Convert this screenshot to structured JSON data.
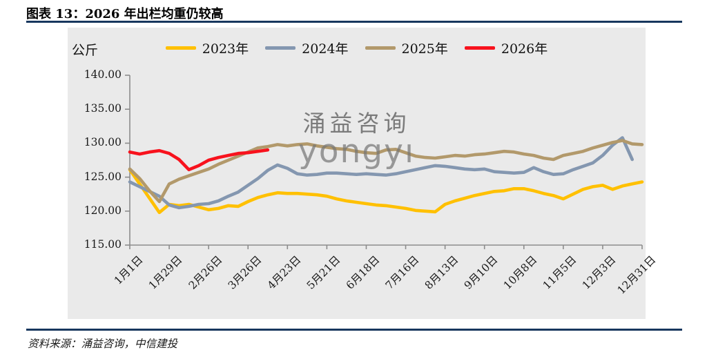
{
  "title": "图表 13：2026 年出栏均重仍较高",
  "source_note": "资料来源：涌益咨询，中信建投",
  "watermark": {
    "line1": "涌益咨询",
    "line2": "yongyı"
  },
  "rule_color": "#17375E",
  "chart_data": {
    "type": "line",
    "unit_label": "公斤",
    "plot_bg": "#EAEAEA",
    "axis_color": "#8C8C8C",
    "grid": "off",
    "legend_position": "top",
    "ylim": [
      115,
      140
    ],
    "y_tick_labels": [
      "140.00",
      "135.00",
      "130.00",
      "125.00",
      "120.00",
      "115.00"
    ],
    "y_tick_values": [
      140,
      135,
      130,
      125,
      120,
      115
    ],
    "x_tick_labels": [
      "1月1日",
      "1月29日",
      "2月26日",
      "3月26日",
      "4月23日",
      "5月21日",
      "6月18日",
      "7月16日",
      "8月13日",
      "9月10日",
      "10月8日",
      "11月5日",
      "12月3日",
      "12月31日"
    ],
    "points_per_tick": 4,
    "x_unit": "week",
    "series": [
      {
        "name": "2023年",
        "color": "#FFC000",
        "values": [
          126.1,
          124.0,
          121.9,
          119.8,
          121.0,
          120.8,
          121.0,
          120.6,
          120.2,
          120.4,
          120.8,
          120.7,
          121.4,
          122.0,
          122.4,
          122.7,
          122.6,
          122.6,
          122.5,
          122.4,
          122.2,
          121.8,
          121.5,
          121.3,
          121.1,
          120.9,
          120.8,
          120.6,
          120.4,
          120.1,
          120.0,
          119.9,
          121.0,
          121.5,
          121.9,
          122.3,
          122.6,
          122.9,
          123.0,
          123.3,
          123.3,
          123.0,
          122.6,
          122.3,
          121.8,
          122.5,
          123.2,
          123.6,
          123.8,
          123.2,
          123.7,
          124.0,
          124.3
        ]
      },
      {
        "name": "2024年",
        "color": "#8497B0",
        "values": [
          124.3,
          123.6,
          122.9,
          122.2,
          120.9,
          120.5,
          120.7,
          121.0,
          121.1,
          121.5,
          122.2,
          122.8,
          123.8,
          124.8,
          126.0,
          126.8,
          126.3,
          125.5,
          125.3,
          125.4,
          125.6,
          125.6,
          125.5,
          125.4,
          125.5,
          125.4,
          125.3,
          125.5,
          125.8,
          126.1,
          126.4,
          126.7,
          126.6,
          126.4,
          126.2,
          126.1,
          126.2,
          125.8,
          125.7,
          125.6,
          125.7,
          126.4,
          125.8,
          125.4,
          125.5,
          126.1,
          126.6,
          127.1,
          128.2,
          129.7,
          130.8,
          127.6
        ]
      },
      {
        "name": "2025年",
        "color": "#B2996B",
        "values": [
          126.2,
          124.8,
          123.0,
          121.4,
          124.0,
          124.7,
          125.2,
          125.7,
          126.2,
          126.9,
          127.5,
          128.1,
          128.7,
          129.3,
          129.5,
          129.8,
          129.6,
          129.8,
          129.9,
          129.6,
          129.4,
          129.2,
          129.1,
          128.8,
          128.6,
          128.5,
          129.0,
          129.1,
          128.6,
          128.1,
          127.9,
          127.8,
          128.0,
          128.2,
          128.1,
          128.3,
          128.4,
          128.6,
          128.8,
          128.7,
          128.4,
          128.2,
          127.8,
          127.6,
          128.2,
          128.5,
          128.8,
          129.3,
          129.7,
          130.1,
          130.4,
          129.9,
          129.8
        ]
      },
      {
        "name": "2026年",
        "color": "#F8121D",
        "values": [
          128.7,
          128.4,
          128.7,
          128.9,
          128.5,
          127.6,
          126.1,
          126.7,
          127.5,
          127.9,
          128.2,
          128.5,
          128.6,
          128.8,
          129.0
        ]
      }
    ]
  }
}
